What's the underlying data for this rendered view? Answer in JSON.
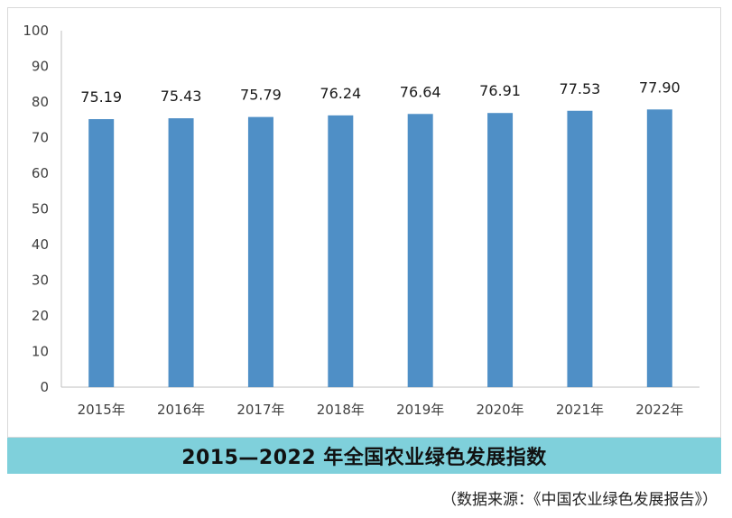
{
  "chart_data": {
    "type": "bar",
    "title": "2015—2022 年全国农业绿色发展指数",
    "categories": [
      "2015年",
      "2016年",
      "2017年",
      "2018年",
      "2019年",
      "2020年",
      "2021年",
      "2022年"
    ],
    "values": [
      75.19,
      75.43,
      75.79,
      76.24,
      76.64,
      76.91,
      77.53,
      77.9
    ],
    "value_labels": [
      "75.19",
      "75.43",
      "75.79",
      "76.24",
      "76.64",
      "76.91",
      "77.53",
      "77.90"
    ],
    "ylim": [
      0,
      100
    ],
    "yticks": [
      "0",
      "10",
      "20",
      "30",
      "40",
      "50",
      "60",
      "70",
      "80",
      "90",
      "100"
    ],
    "xlabel": "",
    "ylabel": "",
    "grid": false,
    "legend": "none",
    "bar_color": "#4f8fc6"
  },
  "caption": {
    "title": "2015—2022 年全国农业绿色发展指数",
    "background": "#7fd0db"
  },
  "source": {
    "text": "（数据来源：《中国农业绿色发展报告》）"
  }
}
